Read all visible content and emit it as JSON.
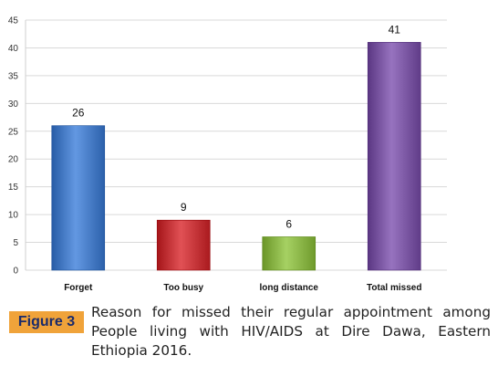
{
  "chart_data": {
    "type": "bar",
    "categories": [
      "Forget",
      "Too busy",
      "long distance",
      "Total missed"
    ],
    "values": [
      26,
      9,
      6,
      41
    ],
    "ylim": [
      0,
      45
    ],
    "yticks": [
      0,
      5,
      10,
      15,
      20,
      25,
      30,
      35,
      40,
      45
    ],
    "grid": true,
    "colors": [
      "#4a7fc9",
      "#c8383c",
      "#8db84a",
      "#7e5aa6"
    ]
  },
  "caption": {
    "figure_label": "Figure 3",
    "text": "Reason for missed their regular appointment among People living with HIV/AIDS at Dire Dawa, Eastern Ethiopia 2016."
  }
}
